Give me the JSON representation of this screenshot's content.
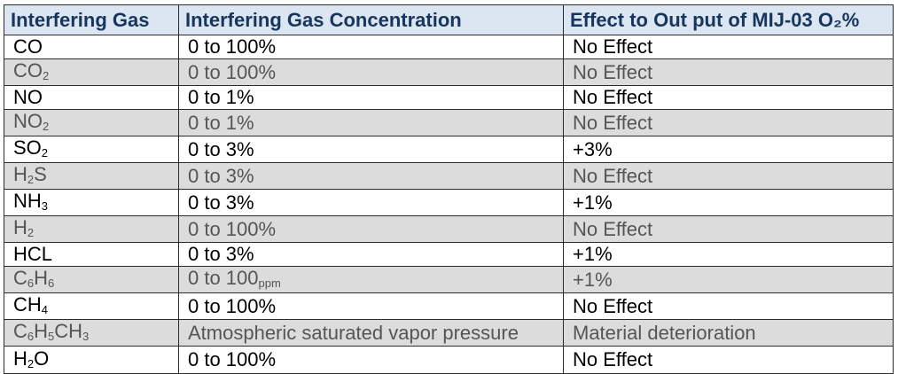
{
  "table": {
    "headers": [
      "Interfering Gas",
      "Interfering Gas Concentration",
      "Effect to Out put of MIJ-03 O₂%"
    ],
    "rows": [
      {
        "gas": [
          [
            "CO",
            ""
          ]
        ],
        "conc": [
          [
            "0 to 100%",
            ""
          ]
        ],
        "effect": "No Effect"
      },
      {
        "gas": [
          [
            "CO",
            ""
          ],
          [
            "2",
            "sub"
          ]
        ],
        "conc": [
          [
            "0 to 100%",
            ""
          ]
        ],
        "effect": "No Effect"
      },
      {
        "gas": [
          [
            "NO",
            ""
          ]
        ],
        "conc": [
          [
            "0 to 1%",
            ""
          ]
        ],
        "effect": "No Effect"
      },
      {
        "gas": [
          [
            "NO",
            ""
          ],
          [
            "2",
            "sub"
          ]
        ],
        "conc": [
          [
            "0 to 1%",
            ""
          ]
        ],
        "effect": "No Effect"
      },
      {
        "gas": [
          [
            "SO",
            ""
          ],
          [
            "2",
            "sub"
          ]
        ],
        "conc": [
          [
            "0 to 3%",
            ""
          ]
        ],
        "effect": "+3%"
      },
      {
        "gas": [
          [
            "H",
            ""
          ],
          [
            "2",
            "sub"
          ],
          [
            "S",
            ""
          ]
        ],
        "conc": [
          [
            "0 to 3%",
            ""
          ]
        ],
        "effect": "No Effect"
      },
      {
        "gas": [
          [
            "NH",
            ""
          ],
          [
            "3",
            "sub"
          ]
        ],
        "conc": [
          [
            "0 to 3%",
            ""
          ]
        ],
        "effect": "+1%"
      },
      {
        "gas": [
          [
            "H",
            ""
          ],
          [
            "2",
            "sub"
          ]
        ],
        "conc": [
          [
            "0 to 100%",
            ""
          ]
        ],
        "effect": "No Effect"
      },
      {
        "gas": [
          [
            "HCL",
            ""
          ]
        ],
        "conc": [
          [
            "0 to 3%",
            ""
          ]
        ],
        "effect": "+1%"
      },
      {
        "gas": [
          [
            "C",
            ""
          ],
          [
            "6",
            "sub"
          ],
          [
            "H",
            ""
          ],
          [
            "6",
            "sub"
          ]
        ],
        "conc": [
          [
            "0 to 100",
            ""
          ],
          [
            "ppm",
            "sub"
          ]
        ],
        "effect": "+1%"
      },
      {
        "gas": [
          [
            "CH",
            ""
          ],
          [
            "4",
            "sub"
          ]
        ],
        "conc": [
          [
            "0 to 100%",
            ""
          ]
        ],
        "effect": "No Effect"
      },
      {
        "gas": [
          [
            "C",
            ""
          ],
          [
            "6",
            "sub"
          ],
          [
            "H",
            ""
          ],
          [
            "5",
            "sub"
          ],
          [
            "CH",
            ""
          ],
          [
            "3",
            "sub"
          ]
        ],
        "conc": [
          [
            "Atmospheric saturated vapor pressure",
            ""
          ]
        ],
        "effect": "Material deterioration"
      },
      {
        "gas": [
          [
            "H",
            ""
          ],
          [
            "2",
            "sub"
          ],
          [
            "O",
            ""
          ]
        ],
        "conc": [
          [
            "0 to 100%",
            ""
          ]
        ],
        "effect": "No Effect"
      }
    ]
  }
}
